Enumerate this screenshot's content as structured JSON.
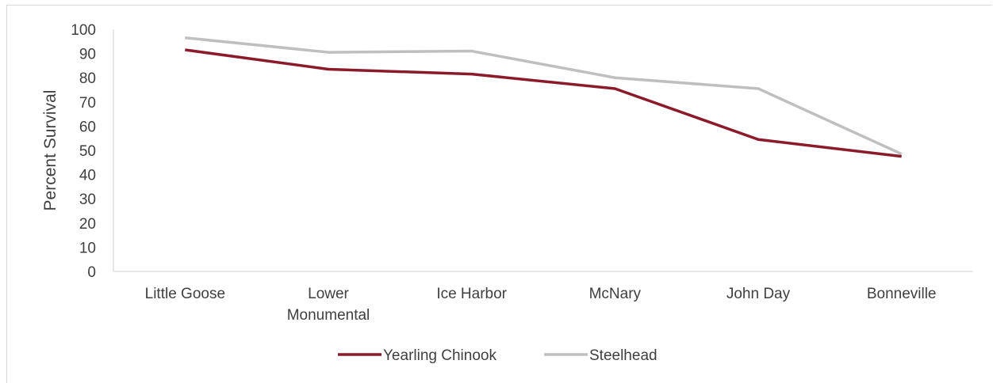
{
  "chart_data": {
    "type": "line",
    "title": "",
    "xlabel": "",
    "ylabel": "Percent Survival",
    "ylim": [
      0,
      100
    ],
    "yticks": [
      0,
      10,
      20,
      30,
      40,
      50,
      60,
      70,
      80,
      90,
      100
    ],
    "categories": [
      [
        "Little Goose"
      ],
      [
        "Lower",
        "Monumental"
      ],
      [
        "Ice Harbor"
      ],
      [
        "McNary"
      ],
      [
        "John Day"
      ],
      [
        "Bonneville"
      ]
    ],
    "series": [
      {
        "name": "Yearling Chinook",
        "color": "#8b1a2b",
        "values": [
          91.5,
          83.5,
          81.5,
          75.5,
          54.5,
          47.5
        ]
      },
      {
        "name": "Steelhead",
        "color": "#bfbfbf",
        "values": [
          96.5,
          90.5,
          91,
          80,
          75.5,
          48.5
        ]
      }
    ],
    "grid": false,
    "legend": "bottom-center"
  }
}
